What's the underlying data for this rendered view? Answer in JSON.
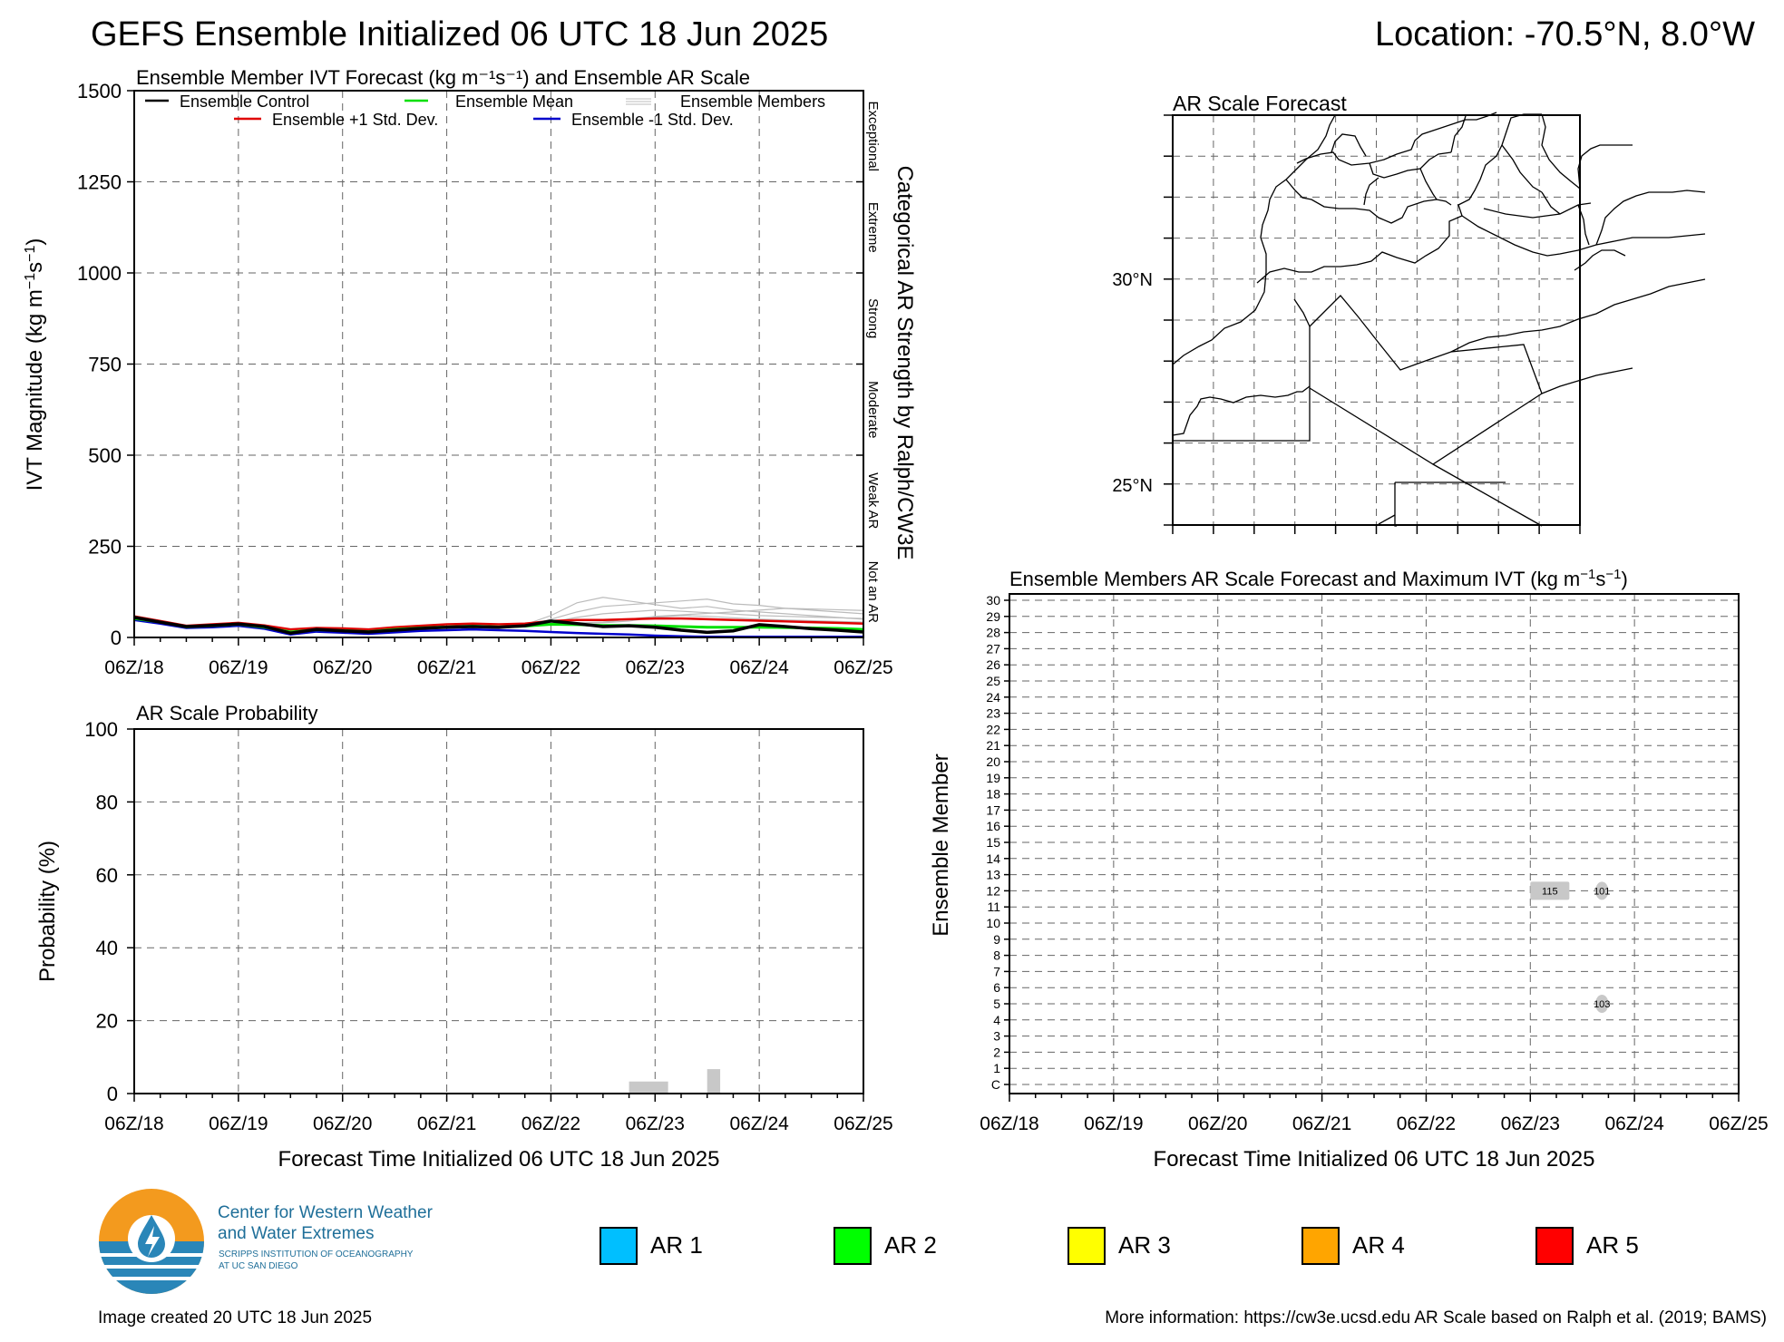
{
  "header": {
    "title": "GEFS Ensemble Initialized 06 UTC 18 Jun 2025",
    "location": "Location: -70.5°N, 8.0°W"
  },
  "time_labels": [
    "06Z/18",
    "06Z/19",
    "06Z/20",
    "06Z/21",
    "06Z/22",
    "06Z/23",
    "06Z/24",
    "06Z/25"
  ],
  "xlabel": "Forecast Time Initialized 06 UTC 18 Jun 2025",
  "colors": {
    "control": "#000000",
    "mean": "#00e000",
    "members": "#bbbbbb",
    "plus_std": "#e00000",
    "minus_std": "#0000cc",
    "grid": "#666666",
    "prob_bar": "#c8c8c8",
    "ar1": "#00bfff",
    "ar2": "#00ff00",
    "ar3": "#ffff00",
    "ar4": "#ffa500",
    "ar5": "#ff0000"
  },
  "chart_data": [
    {
      "id": "ivt",
      "type": "line",
      "title": "Ensemble Member IVT Forecast (kg m⁻¹s⁻¹) and Ensemble AR Scale",
      "ylabel": "IVT Magnitude (kg m⁻¹s⁻¹)",
      "right_label": "Categorical AR Strength by Ralph/CW3E",
      "categories_right": [
        "Exceptional",
        "Extreme",
        "Strong",
        "Moderate",
        "Weak AR",
        "Not an AR"
      ],
      "legend": [
        "Ensemble Control",
        "Ensemble Mean",
        "Ensemble Members",
        "Ensemble +1 Std. Dev.",
        "Ensemble -1 Std. Dev."
      ],
      "legend_location": "top",
      "ylim": [
        0,
        1500
      ],
      "yticks": [
        0,
        250,
        500,
        750,
        1000,
        1250,
        1500
      ],
      "xlim_hours": [
        0,
        168
      ],
      "x_hours": [
        0,
        6,
        12,
        18,
        24,
        30,
        36,
        42,
        48,
        54,
        60,
        66,
        72,
        78,
        84,
        90,
        96,
        102,
        108,
        114,
        120,
        126,
        132,
        138,
        144,
        150,
        156,
        162,
        168
      ],
      "series": [
        {
          "name": "Ensemble Control",
          "values": [
            55,
            42,
            30,
            33,
            37,
            30,
            12,
            22,
            18,
            15,
            20,
            25,
            28,
            30,
            28,
            32,
            45,
            38,
            30,
            32,
            28,
            20,
            14,
            18,
            35,
            30,
            24,
            20,
            15
          ]
        },
        {
          "name": "Ensemble Mean",
          "values": [
            52,
            42,
            29,
            32,
            36,
            28,
            15,
            21,
            19,
            16,
            22,
            26,
            29,
            31,
            29,
            31,
            36,
            35,
            33,
            33,
            32,
            30,
            28,
            28,
            28,
            27,
            26,
            25,
            22
          ]
        },
        {
          "name": "Ensemble +1 Std. Dev.",
          "values": [
            58,
            45,
            32,
            36,
            40,
            33,
            22,
            26,
            25,
            22,
            28,
            32,
            36,
            38,
            36,
            38,
            45,
            48,
            48,
            50,
            52,
            52,
            50,
            48,
            46,
            44,
            42,
            40,
            38
          ]
        },
        {
          "name": "Ensemble -1 Std. Dev.",
          "values": [
            48,
            38,
            26,
            28,
            32,
            24,
            8,
            16,
            13,
            10,
            14,
            18,
            20,
            22,
            20,
            18,
            15,
            12,
            10,
            8,
            5,
            3,
            2,
            2,
            2,
            2,
            2,
            2,
            2
          ]
        }
      ],
      "members": [
        [
          55,
          44,
          31,
          34,
          38,
          32,
          15,
          24,
          20,
          17,
          22,
          28,
          30,
          33,
          31,
          35,
          60,
          95,
          110,
          100,
          90,
          80,
          85,
          75,
          70,
          65,
          60,
          55,
          50
        ],
        [
          53,
          43,
          30,
          33,
          37,
          30,
          14,
          22,
          19,
          16,
          21,
          26,
          29,
          31,
          30,
          33,
          50,
          70,
          85,
          90,
          95,
          100,
          105,
          92,
          88,
          80,
          75,
          70,
          65
        ],
        [
          56,
          41,
          29,
          32,
          36,
          29,
          13,
          21,
          18,
          15,
          20,
          25,
          28,
          30,
          28,
          31,
          42,
          55,
          65,
          70,
          75,
          72,
          68,
          64,
          60,
          58,
          56,
          54,
          52
        ],
        [
          54,
          42,
          30,
          34,
          38,
          31,
          16,
          23,
          20,
          17,
          23,
          27,
          31,
          32,
          31,
          34,
          38,
          40,
          42,
          50,
          58,
          62,
          66,
          70,
          75,
          80,
          78,
          76,
          74
        ],
        [
          52,
          40,
          28,
          31,
          35,
          28,
          12,
          20,
          17,
          14,
          19,
          24,
          27,
          29,
          27,
          30,
          35,
          38,
          40,
          45,
          55,
          60,
          58,
          54,
          50,
          48,
          46,
          44,
          42
        ]
      ]
    },
    {
      "id": "prob",
      "type": "bar",
      "title": "AR Scale Probability",
      "ylabel": "Probability (%)",
      "ylim": [
        0,
        100
      ],
      "yticks": [
        0,
        20,
        40,
        60,
        80,
        100
      ],
      "bars": [
        {
          "start_hour": 114,
          "end_hour": 123,
          "value": 3.3
        },
        {
          "start_hour": 132,
          "end_hour": 135,
          "value": 6.7
        }
      ]
    },
    {
      "id": "members",
      "type": "heatmap",
      "title": "Ensemble Members AR Scale Forecast and Maximum IVT (kg m⁻¹s⁻¹)",
      "ylabel": "Ensemble Member",
      "member_labels": [
        "C",
        "1",
        "2",
        "3",
        "4",
        "5",
        "6",
        "7",
        "8",
        "9",
        "10",
        "11",
        "12",
        "13",
        "14",
        "15",
        "16",
        "17",
        "18",
        "19",
        "20",
        "21",
        "22",
        "23",
        "24",
        "25",
        "26",
        "27",
        "28",
        "29",
        "30"
      ],
      "cells": [
        {
          "member": "12",
          "start_hour": 120,
          "end_hour": 129,
          "value": "115"
        },
        {
          "member": "12",
          "start_hour": 135,
          "end_hour": 138,
          "value": "101"
        },
        {
          "member": "5",
          "start_hour": 135,
          "end_hour": 138,
          "value": "103"
        }
      ]
    },
    {
      "id": "map",
      "type": "map",
      "title": "AR Scale Forecast",
      "lat_labels": [
        "30°N",
        "25°N"
      ]
    }
  ],
  "legend_ar": [
    {
      "label": "AR 1",
      "color": "#00bfff"
    },
    {
      "label": "AR 2",
      "color": "#00ff00"
    },
    {
      "label": "AR 3",
      "color": "#ffff00"
    },
    {
      "label": "AR 4",
      "color": "#ffa500"
    },
    {
      "label": "AR 5",
      "color": "#ff0000"
    }
  ],
  "logo": {
    "line1": "Center for Western Weather",
    "line2": "and Water Extremes",
    "line3": "SCRIPPS INSTITUTION OF OCEANOGRAPHY",
    "line4": "AT UC SAN DIEGO"
  },
  "footer": {
    "created": "Image created 20 UTC 18 Jun 2025",
    "info": "More information: https://cw3e.ucsd.edu AR Scale based on Ralph et al. (2019; BAMS)"
  }
}
